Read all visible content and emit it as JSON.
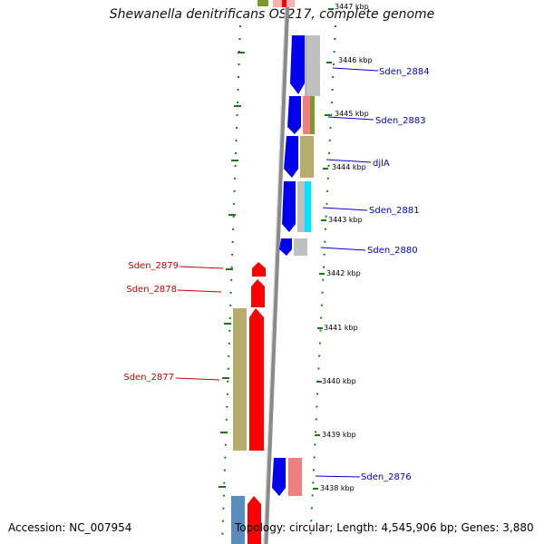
{
  "title": "Shewanella denitrificans OS217, complete genome",
  "accession": "Accession: NC_007954",
  "topology": "Topology: circular; Length: 4,545,906 bp; Genes: 3,880",
  "colors": {
    "forward_gene": "#0000ee",
    "reverse_gene": "#ff0000",
    "label_right": "#0000cc",
    "label_left": "#cc0000",
    "tick": "#1a7a1a",
    "backbone": "#888888",
    "cog_grey": "#c0c0c0",
    "cog_olive": "#b5ac6e",
    "cog_pink": "#f08080",
    "cog_cyan": "#00e5ff",
    "cog_steelblue": "#5b8cc0",
    "cog_green": "#7a9a2a"
  },
  "kbp_markers": [
    "3447 kbp",
    "3446 kbp",
    "3445 kbp",
    "3444 kbp",
    "3443 kbp",
    "3442 kbp",
    "3441 kbp",
    "3440 kbp",
    "3439 kbp",
    "3438 kbp"
  ],
  "gene_labels_right": [
    "Sden_2884",
    "Sden_2883",
    "djlA",
    "Sden_2881",
    "Sden_2880",
    "Sden_2876"
  ],
  "gene_labels_left": [
    "Sden_2879",
    "Sden_2878",
    "Sden_2877"
  ]
}
